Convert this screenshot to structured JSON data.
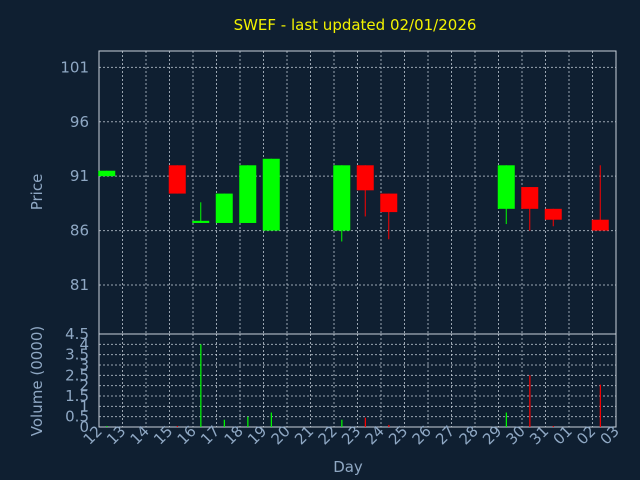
{
  "chart_data": {
    "title": "SWEF - last updated 02/01/2026",
    "xlabel": "Day",
    "x_ticks": [
      "12",
      "13",
      "14",
      "15",
      "16",
      "17",
      "18",
      "19",
      "20",
      "21",
      "22",
      "23",
      "24",
      "25",
      "26",
      "27",
      "28",
      "29",
      "30",
      "31",
      "01",
      "02",
      "03"
    ],
    "price": {
      "type": "candlestick",
      "ylabel": "Price",
      "ylim": [
        76.5,
        102.5
      ],
      "yticks": [
        81,
        86,
        91,
        96,
        101
      ],
      "grid": true,
      "candles": [
        {
          "day": "12",
          "open": 91.0,
          "close": 91.5,
          "high": 91.5,
          "low": 91.0
        },
        {
          "day": "15",
          "open": 92.0,
          "close": 89.4,
          "high": 92.0,
          "low": 89.4
        },
        {
          "day": "16",
          "open": 86.7,
          "close": 86.9,
          "high": 88.6,
          "low": 86.7
        },
        {
          "day": "17",
          "open": 86.7,
          "close": 89.4,
          "high": 89.4,
          "low": 86.7
        },
        {
          "day": "18",
          "open": 86.7,
          "close": 92.0,
          "high": 92.0,
          "low": 86.7
        },
        {
          "day": "19",
          "open": 86.0,
          "close": 92.6,
          "high": 92.6,
          "low": 86.0
        },
        {
          "day": "22",
          "open": 86.0,
          "close": 92.0,
          "high": 92.0,
          "low": 85.0
        },
        {
          "day": "23",
          "open": 92.0,
          "close": 89.7,
          "high": 92.0,
          "low": 87.3
        },
        {
          "day": "24",
          "open": 89.4,
          "close": 87.7,
          "high": 89.4,
          "low": 85.2
        },
        {
          "day": "29",
          "open": 88.0,
          "close": 92.0,
          "high": 92.0,
          "low": 86.6
        },
        {
          "day": "30",
          "open": 90.0,
          "close": 88.0,
          "high": 90.0,
          "low": 86.0
        },
        {
          "day": "31",
          "open": 88.0,
          "close": 87.0,
          "high": 88.0,
          "low": 86.4
        },
        {
          "day": "02",
          "open": 87.0,
          "close": 86.0,
          "high": 92.0,
          "low": 86.0
        }
      ]
    },
    "volume": {
      "type": "bar",
      "ylabel": "Volume (0000)",
      "ylim": [
        0,
        4.5
      ],
      "yticks": [
        0,
        0.5,
        1,
        1.5,
        2,
        2.5,
        3,
        3.5,
        4,
        4.5
      ],
      "tick_labels": [
        "0",
        "0.5",
        "1",
        "1.5",
        "2",
        "2.5",
        "3",
        "3.5",
        "4",
        "4.5"
      ],
      "bars": [
        {
          "day": "12",
          "value": 0.05
        },
        {
          "day": "15",
          "value": 0.05
        },
        {
          "day": "16",
          "value": 4.0
        },
        {
          "day": "17",
          "value": 0.35
        },
        {
          "day": "18",
          "value": 0.5
        },
        {
          "day": "19",
          "value": 0.7
        },
        {
          "day": "22",
          "value": 0.35
        },
        {
          "day": "23",
          "value": 0.45
        },
        {
          "day": "24",
          "value": 0.1
        },
        {
          "day": "29",
          "value": 0.7
        },
        {
          "day": "30",
          "value": 2.5
        },
        {
          "day": "31",
          "value": 0.05
        },
        {
          "day": "02",
          "value": 2.05
        }
      ]
    },
    "colors": {
      "up": "#00ff00",
      "down": "#ff0000",
      "background": "#0f1f31",
      "grid": "#c9d2dc",
      "axis_text": "#8fa8c4",
      "title": "#f2f200"
    }
  }
}
